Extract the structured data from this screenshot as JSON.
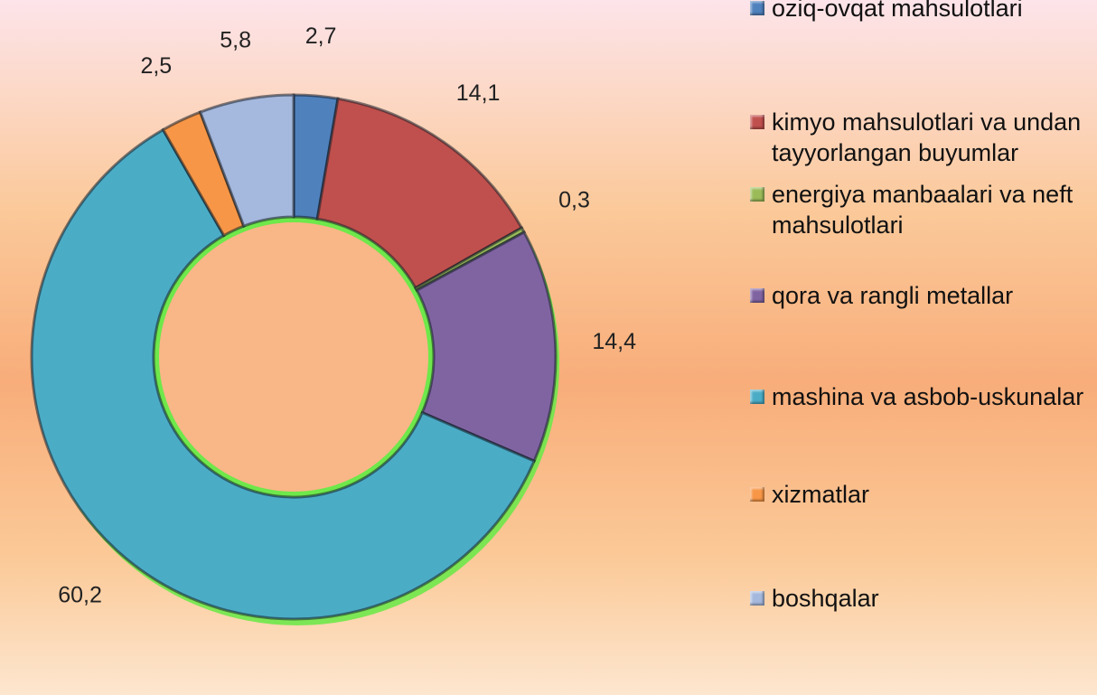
{
  "chart_data": {
    "type": "donut",
    "categories": [
      "oziq-ovqat mahsulotlari",
      "kimyo mahsulotlari va undan tayyorlangan buyumlar",
      "energiya manbaalari va neft mahsulotlari",
      "qora va rangli metallar",
      "mashina va asbob-uskunalar",
      "xizmatlar",
      "boshqalar"
    ],
    "values": [
      2.7,
      14.1,
      0.3,
      14.4,
      60.2,
      2.5,
      5.8
    ],
    "value_labels": [
      "2,7",
      "14,1",
      "0,3",
      "14,4",
      "60,2",
      "2,5",
      "5,8"
    ],
    "colors": [
      "#4f81bd",
      "#c0504d",
      "#9bbb59",
      "#8064a2",
      "#4bacc6",
      "#f79646",
      "#a5b8dd"
    ],
    "legend": "right"
  }
}
